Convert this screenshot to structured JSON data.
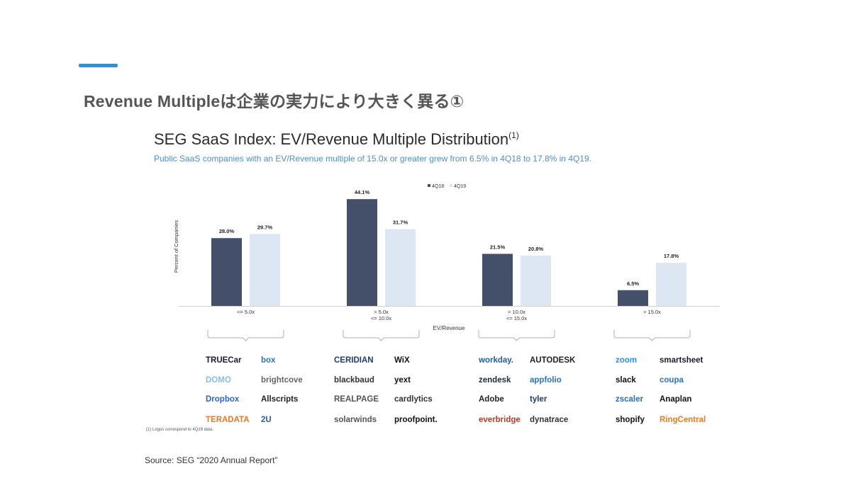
{
  "slide": {
    "title": "Revenue Multipleは企業の実力により大きく異る①",
    "accent_color": "#3b8fc9"
  },
  "chart_data": {
    "type": "bar",
    "title": "SEG SaaS Index: EV/Revenue Multiple Distribution",
    "title_superscript": "(1)",
    "subtitle": "Public SaaS companies with an EV/Revenue multiple of 15.0x or greater grew from 6.5% in 4Q18 to 17.8% in 4Q19.",
    "xlabel": "EV/Revenue",
    "ylabel": "Percent of Companies",
    "categories": [
      [
        "<= 5.0x"
      ],
      [
        "> 5.0x",
        "<= 10.0x"
      ],
      [
        "> 10.0x",
        "<= 15.0x"
      ],
      [
        "> 15.0x"
      ]
    ],
    "series": [
      {
        "name": "4Q18",
        "color": "#44506a",
        "values": [
          28.0,
          44.1,
          21.5,
          6.5
        ]
      },
      {
        "name": "4Q19",
        "color": "#dde7f4",
        "values": [
          29.7,
          31.7,
          20.8,
          17.8
        ]
      }
    ],
    "value_labels": [
      [
        "28.0%",
        "44.1%",
        "21.5%",
        "6.5%"
      ],
      [
        "29.7%",
        "31.7%",
        "20.8%",
        "17.8%"
      ]
    ],
    "ylim": [
      0,
      50
    ],
    "legend_position": "top",
    "grid": false
  },
  "logo_groups": [
    [
      {
        "text": "TRUECar",
        "color": "#1a1a2e"
      },
      {
        "text": "box",
        "color": "#2a73c9"
      },
      {
        "text": "DOMO",
        "color": "#8bbde6"
      },
      {
        "text": "brightcove",
        "color": "#666666"
      },
      {
        "text": "Dropbox",
        "color": "#2a64c9"
      },
      {
        "text": "Allscripts",
        "color": "#222222"
      },
      {
        "text": "TERADATA",
        "color": "#e8782a"
      },
      {
        "text": "2U",
        "color": "#2a5ea6"
      }
    ],
    [
      {
        "text": "CERIDIAN",
        "color": "#1f3a78"
      },
      {
        "text": "WiX",
        "color": "#111111"
      },
      {
        "text": "blackbaud",
        "color": "#333333"
      },
      {
        "text": "yext",
        "color": "#111111"
      },
      {
        "text": "REALPAGE",
        "color": "#555555"
      },
      {
        "text": "cardlytics",
        "color": "#333333"
      },
      {
        "text": "solarwinds",
        "color": "#555555"
      },
      {
        "text": "proofpoint.",
        "color": "#111111"
      }
    ],
    [
      {
        "text": "workday.",
        "color": "#1f5da8"
      },
      {
        "text": "AUTODESK",
        "color": "#222222"
      },
      {
        "text": "zendesk",
        "color": "#1a2b3c"
      },
      {
        "text": "appfolio",
        "color": "#2a73c9"
      },
      {
        "text": "Adobe",
        "color": "#222222"
      },
      {
        "text": "tyler",
        "color": "#1f3a78"
      },
      {
        "text": "everbridge",
        "color": "#c0392b"
      },
      {
        "text": "dynatrace",
        "color": "#333333"
      }
    ],
    [
      {
        "text": "zoom",
        "color": "#2d8cff"
      },
      {
        "text": "smartsheet",
        "color": "#1a1a2e"
      },
      {
        "text": "slack",
        "color": "#111111"
      },
      {
        "text": "coupa",
        "color": "#2a73c9"
      },
      {
        "text": "zscaler",
        "color": "#1f6fc0"
      },
      {
        "text": "Anaplan",
        "color": "#111111"
      },
      {
        "text": "shopify",
        "color": "#111111"
      },
      {
        "text": "RingCentral",
        "color": "#f07c1e"
      }
    ]
  ],
  "footnote": "(1)      Logos correspond to 4Q19 data.",
  "source": "Source: SEG “2020 Annual Report”"
}
